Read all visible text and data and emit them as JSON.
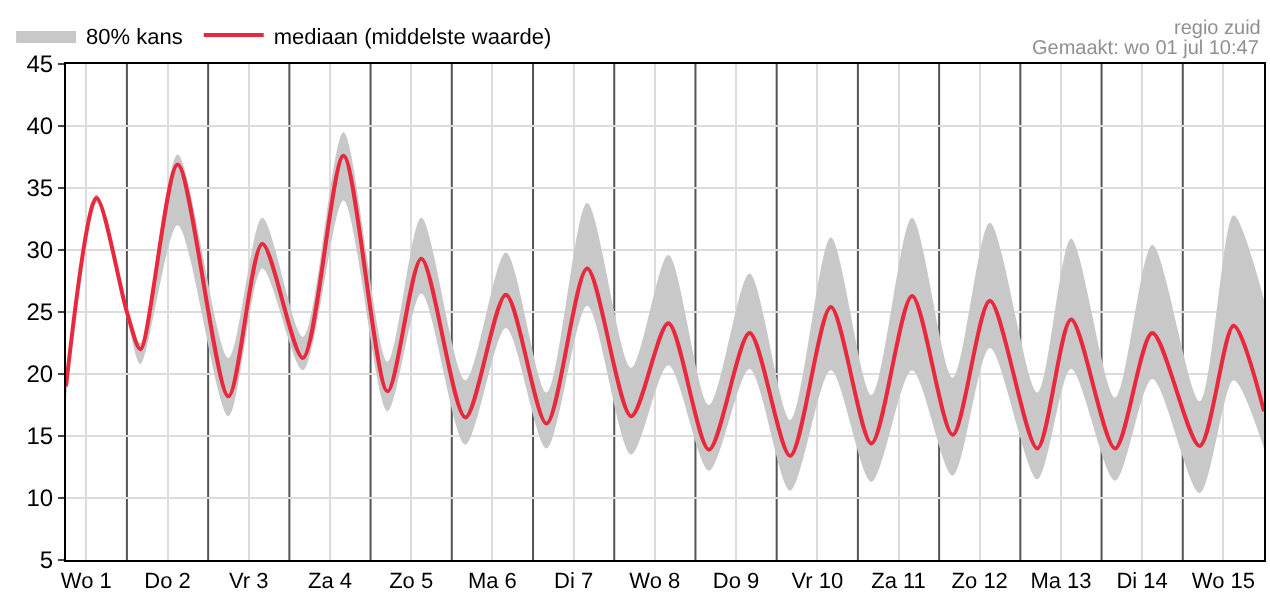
{
  "chart_data": {
    "type": "line",
    "annotations": [
      "80% kans",
      "regio zuid",
      "Gemaakt: wo 01 jul 10:47"
    ],
    "x": [
      "--07-01T06:00",
      "--07-01T15:00",
      "--07-02T00:00",
      "--07-02T04:00",
      "--07-02T15:00",
      "--07-03T06:00",
      "--07-03T16:00",
      "--07-04T04:00",
      "--07-04T16:00",
      "--07-05T05:00",
      "--07-05T15:00",
      "--07-06T04:00",
      "--07-06T16:00",
      "--07-07T04:00",
      "--07-07T16:00",
      "--07-08T05:00",
      "--07-08T16:00",
      "--07-09T04:00",
      "--07-09T16:00",
      "--07-10T04:00",
      "--07-10T16:00",
      "--07-11T04:00",
      "--07-11T16:00",
      "--07-12T04:00",
      "--07-12T15:00",
      "--07-13T05:00",
      "--07-13T15:00",
      "--07-14T04:00",
      "--07-14T15:00",
      "--07-15T05:00",
      "--07-15T15:00",
      "--07-16T00:00"
    ],
    "series": [
      {
        "name": "mediaan (middelste waarde)",
        "color": "#e8283c",
        "values": [
          19,
          34.2,
          25,
          22,
          36.9,
          18.2,
          30.5,
          21.3,
          37.6,
          18.6,
          29.3,
          16.5,
          26.4,
          16,
          28.5,
          16.6,
          24.1,
          13.9,
          23.3,
          13.4,
          25.4,
          14.4,
          26.3,
          15.1,
          25.9,
          14,
          24.4,
          14,
          23.3,
          14.2,
          23.9,
          17
        ],
        "upper": [
          20,
          34.5,
          25.5,
          22.5,
          37.7,
          21.3,
          32.6,
          23,
          39.5,
          21,
          32.6,
          19.5,
          29.8,
          18.5,
          33.8,
          20.5,
          29.6,
          17.5,
          28.1,
          16.3,
          31,
          18.3,
          32.6,
          19.7,
          32.2,
          18.5,
          30.9,
          18.1,
          30.4,
          17.8,
          32.8,
          26
        ],
        "lower": [
          18,
          33.8,
          24.5,
          20.8,
          32,
          16.6,
          28.5,
          20.3,
          34,
          17,
          26.5,
          14.3,
          23.7,
          14,
          25.5,
          13.5,
          20.7,
          12.2,
          20.4,
          10.6,
          20.3,
          11.3,
          20.3,
          11.8,
          22.1,
          11.5,
          20.4,
          11.4,
          19.6,
          10.4,
          19.5,
          14
        ]
      }
    ],
    "xlim": [
      "--07-01T06:00",
      "--07-16T00:00"
    ],
    "xticks": [
      {
        "value": "--07-01T12:00",
        "label": "Wo 1"
      },
      {
        "value": "--07-02T12:00",
        "label": "Do 2"
      },
      {
        "value": "--07-03T12:00",
        "label": "Vr 3"
      },
      {
        "value": "--07-04T12:00",
        "label": "Za 4"
      },
      {
        "value": "--07-05T12:00",
        "label": "Zo 5"
      },
      {
        "value": "--07-06T12:00",
        "label": "Ma 6"
      },
      {
        "value": "--07-07T12:00",
        "label": "Di 7"
      },
      {
        "value": "--07-08T12:00",
        "label": "Wo 8"
      },
      {
        "value": "--07-09T12:00",
        "label": "Do 9"
      },
      {
        "value": "--07-10T12:00",
        "label": "Vr 10"
      },
      {
        "value": "--07-11T12:00",
        "label": "Za 11"
      },
      {
        "value": "--07-12T12:00",
        "label": "Zo 12"
      },
      {
        "value": "--07-13T12:00",
        "label": "Ma 13"
      },
      {
        "value": "--07-14T12:00",
        "label": "Di 14"
      },
      {
        "value": "--07-15T12:00",
        "label": "Wo 15"
      }
    ],
    "ylim": [
      5,
      45
    ],
    "yticks": [
      5,
      10,
      15,
      20,
      25,
      30,
      35,
      40,
      45
    ],
    "ref_lines": [
      {
        "axis": "x",
        "value": "--07-02",
        "color": "#555555"
      },
      {
        "axis": "x",
        "value": "--07-03",
        "color": "#555555"
      },
      {
        "axis": "x",
        "value": "--07-04",
        "color": "#555555"
      },
      {
        "axis": "x",
        "value": "--07-05",
        "color": "#555555"
      },
      {
        "axis": "x",
        "value": "--07-06",
        "color": "#555555"
      },
      {
        "axis": "x",
        "value": "--07-07",
        "color": "#555555"
      },
      {
        "axis": "x",
        "value": "--07-08",
        "color": "#555555"
      },
      {
        "axis": "x",
        "value": "--07-09",
        "color": "#555555"
      },
      {
        "axis": "x",
        "value": "--07-10",
        "color": "#555555"
      },
      {
        "axis": "x",
        "value": "--07-11",
        "color": "#555555"
      },
      {
        "axis": "x",
        "value": "--07-12",
        "color": "#555555"
      },
      {
        "axis": "x",
        "value": "--07-13",
        "color": "#555555"
      },
      {
        "axis": "x",
        "value": "--07-14",
        "color": "#555555"
      },
      {
        "axis": "x",
        "value": "--07-15",
        "color": "#555555"
      }
    ],
    "grid": true,
    "legend": "top left",
    "marker": "none",
    "line_style": "solid"
  }
}
